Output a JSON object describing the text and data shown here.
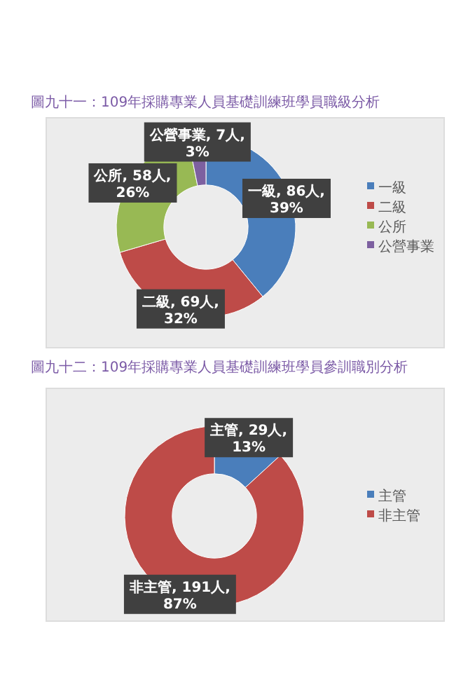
{
  "chart_data": [
    {
      "type": "donut",
      "title": "圖九十一：109年採購專業人員基礎訓練班學員職級分析",
      "categories": [
        "一級",
        "二級",
        "公所",
        "公營事業"
      ],
      "values": [
        86,
        69,
        58,
        7
      ],
      "colors": [
        "#4a7ebb",
        "#be4b48",
        "#98b954",
        "#7d60a0"
      ],
      "value_labels": [
        "一級, 86人, 39%",
        "二級, 69人, 32%",
        "公所, 58人, 26%",
        "公營事業, 7人, 3%"
      ],
      "legend": "right"
    },
    {
      "type": "donut",
      "title": "圖九十二：109年採購專業人員基礎訓練班學員參訓職別分析",
      "categories": [
        "主管",
        "非主管"
      ],
      "values": [
        29,
        191
      ],
      "colors": [
        "#4a7ebb",
        "#be4b48"
      ],
      "value_labels": [
        "主管, 29人, 13%",
        "非主管, 191人, 87%"
      ],
      "legend": "right"
    }
  ]
}
